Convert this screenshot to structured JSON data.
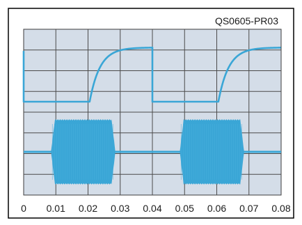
{
  "chart_data": {
    "type": "line",
    "title": "QS0605-PR03",
    "xlabel": "",
    "ylabel": "",
    "x_ticks": [
      "0",
      "0.01",
      "0.02",
      "0.03",
      "0.04",
      "0.05",
      "0.06",
      "0.07",
      "0.08"
    ],
    "xlim": [
      0,
      0.08
    ],
    "grid": true,
    "grid_divisions": {
      "x": 8,
      "y": 8
    },
    "legend": "none",
    "series": [
      {
        "kind": "step-response",
        "description_points": [
          {
            "x": 0.0,
            "level": 0.9
          },
          {
            "x": 0.0,
            "level": 0.0
          },
          {
            "x": 0.02,
            "level": 0.0
          },
          {
            "x": 0.04,
            "level": 0.96
          },
          {
            "x": 0.04,
            "level": 0.0
          },
          {
            "x": 0.06,
            "level": 0.0
          },
          {
            "x": 0.08,
            "level": 0.96
          }
        ],
        "rise_starts": [
          0.0205,
          0.0605
        ],
        "time_constant": 0.0032
      },
      {
        "kind": "burst",
        "bursts": [
          {
            "start": 0.0085,
            "end": 0.0285
          },
          {
            "start": 0.0485,
            "end": 0.0685
          }
        ],
        "baseline": 0.0,
        "amplitude": 1.0
      }
    ],
    "colors": {
      "trace": "#3aa6d6",
      "grid": "#4b4b4b",
      "plot_bg": "#d4dde8",
      "border": "#000000"
    }
  }
}
